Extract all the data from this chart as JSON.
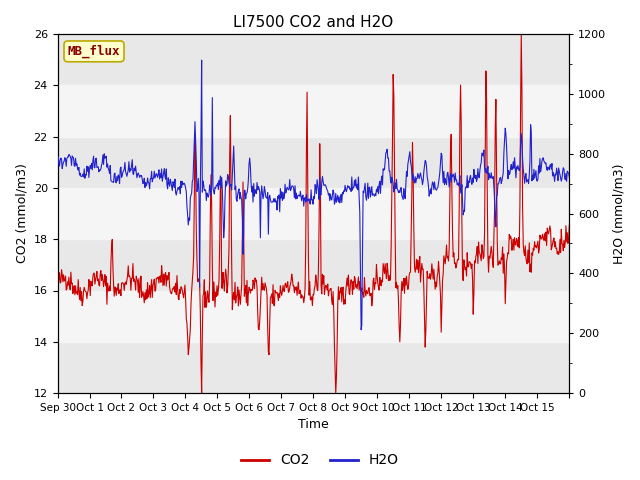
{
  "title": "LI7500 CO2 and H2O",
  "xlabel": "Time",
  "ylabel_left": "CO2 (mmol/m3)",
  "ylabel_right": "H2O (mmol/m3)",
  "ylim_left": [
    12,
    26
  ],
  "ylim_right": [
    0,
    1200
  ],
  "yticks_left": [
    12,
    14,
    16,
    18,
    20,
    22,
    24,
    26
  ],
  "yticks_right": [
    0,
    200,
    400,
    600,
    800,
    1000,
    1200
  ],
  "co2_color": "#cc0000",
  "h2o_color": "#2222cc",
  "background_color": "#e8e8e8",
  "band_color": "#f5f5f5",
  "mb_flux_label": "MB_flux",
  "mb_flux_bg": "#ffffcc",
  "mb_flux_border": "#bbaa00",
  "legend_co2": "CO2",
  "legend_h2o": "H2O",
  "n_days": 16,
  "seed": 42,
  "tick_labels": [
    "Sep 30",
    "Oct 1",
    "Oct 2",
    "Oct 3",
    "Oct 4",
    "Oct 5",
    "Oct 6",
    "Oct 7",
    "Oct 8",
    "Oct 9",
    "Oct 10",
    "Oct 11",
    "Oct 12",
    "Oct 13",
    "Oct 14",
    "Oct 15"
  ]
}
